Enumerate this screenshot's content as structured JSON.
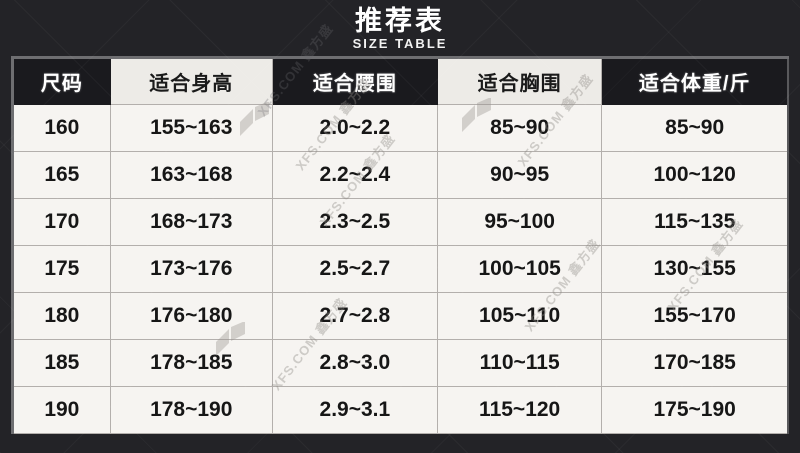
{
  "page": {
    "title": "推荐表",
    "subtitle": "SIZE TABLE"
  },
  "table": {
    "columns": [
      {
        "label": "尺码",
        "style": "dark"
      },
      {
        "label": "适合身高",
        "style": "light"
      },
      {
        "label": "适合腰围",
        "style": "dark"
      },
      {
        "label": "适合胸围",
        "style": "light"
      },
      {
        "label": "适合体重/斤",
        "style": "dark"
      }
    ],
    "rows": [
      [
        "160",
        "155~163",
        "2.0~2.2",
        "85~90",
        "85~90"
      ],
      [
        "165",
        "163~168",
        "2.2~2.4",
        "90~95",
        "100~120"
      ],
      [
        "170",
        "168~173",
        "2.3~2.5",
        "95~100",
        "115~135"
      ],
      [
        "175",
        "173~176",
        "2.5~2.7",
        "100~105",
        "130~155"
      ],
      [
        "180",
        "176~180",
        "2.7~2.8",
        "105~110",
        "155~170"
      ],
      [
        "185",
        "178~185",
        "2.8~3.0",
        "110~115",
        "170~185"
      ],
      [
        "190",
        "178~190",
        "2.9~3.1",
        "115~120",
        "175~190"
      ]
    ]
  },
  "watermark": {
    "brand": "鑫方盛",
    "site": "XFS.COM"
  },
  "colors": {
    "background": "#232327",
    "header_dark_bg": "#1a1a1e",
    "header_light_bg": "#edebe7",
    "cell_bg": "#f6f4f1",
    "cell_border": "#b3afac",
    "table_outer_border": "#6e6e71",
    "text_on_dark": "#ffffff",
    "text_on_light": "#161616"
  }
}
